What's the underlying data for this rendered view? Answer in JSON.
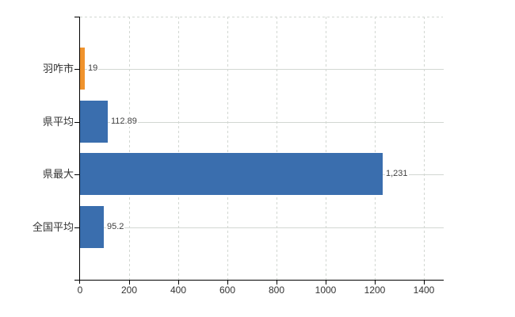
{
  "chart_data": {
    "type": "bar",
    "orientation": "horizontal",
    "title": "",
    "xlabel": "",
    "ylabel": "",
    "categories": [
      "羽咋市",
      "県平均",
      "県最大",
      "全国平均"
    ],
    "values": [
      19,
      112.89,
      1231,
      95.2
    ],
    "value_labels": [
      "19",
      "112.89",
      "1,231",
      "95.2"
    ],
    "bar_colors": [
      "#F0932D",
      "#3A6EAE",
      "#3A6EAE",
      "#3A6EAE"
    ],
    "x_ticks": [
      0,
      200,
      400,
      600,
      800,
      1000,
      1200,
      1400
    ],
    "x_tick_labels": [
      "0",
      "200",
      "400",
      "600",
      "800",
      "1000",
      "1200",
      "1400"
    ],
    "xlim": [
      0,
      1480
    ],
    "grid": true,
    "legend_position": "none"
  },
  "colors": {
    "bar_blue": "#3A6EAE",
    "bar_orange": "#F0932D",
    "gridline": "#D2D7D2",
    "axis": "#000000",
    "text": "#333333",
    "background": "#FFFFFF"
  }
}
